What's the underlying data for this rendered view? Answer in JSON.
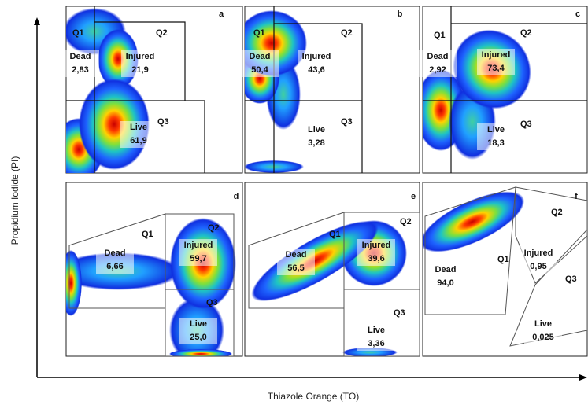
{
  "axes": {
    "y_label": "Propidium Iodide (PI)",
    "x_label": "Thiazole Orange (TO)"
  },
  "panels": [
    {
      "letter": "a",
      "gates": [
        "Q1",
        "Q2",
        "Q3"
      ],
      "populations": [
        {
          "name": "Dead",
          "value": "2,83"
        },
        {
          "name": "Injured",
          "value": "21,9"
        },
        {
          "name": "Live",
          "value": "61,9"
        }
      ]
    },
    {
      "letter": "b",
      "gates": [
        "Q1",
        "Q2",
        "Q3"
      ],
      "populations": [
        {
          "name": "Dead",
          "value": "50,4"
        },
        {
          "name": "Injured",
          "value": "43,6"
        },
        {
          "name": "Live",
          "value": "3,28"
        }
      ]
    },
    {
      "letter": "c",
      "gates": [
        "Q1",
        "Q2",
        "Q3"
      ],
      "populations": [
        {
          "name": "Dead",
          "value": "2,92"
        },
        {
          "name": "Injured",
          "value": "73,4"
        },
        {
          "name": "Live",
          "value": "18,3"
        }
      ]
    },
    {
      "letter": "d",
      "gates": [
        "Q1",
        "Q2",
        "Q3"
      ],
      "populations": [
        {
          "name": "Dead",
          "value": "6,66"
        },
        {
          "name": "Injured",
          "value": "59,7"
        },
        {
          "name": "Live",
          "value": "25,0"
        }
      ]
    },
    {
      "letter": "e",
      "gates": [
        "Q1",
        "Q2",
        "Q3"
      ],
      "populations": [
        {
          "name": "Dead",
          "value": "56,5"
        },
        {
          "name": "Injured",
          "value": "39,6"
        },
        {
          "name": "Live",
          "value": "3,36"
        }
      ]
    },
    {
      "letter": "f",
      "gates": [
        "Q1",
        "Q2",
        "Q3"
      ],
      "populations": [
        {
          "name": "Dead",
          "value": "94,0"
        },
        {
          "name": "Injured",
          "value": "0,95"
        },
        {
          "name": "Live",
          "value": "0,025"
        }
      ]
    }
  ]
}
